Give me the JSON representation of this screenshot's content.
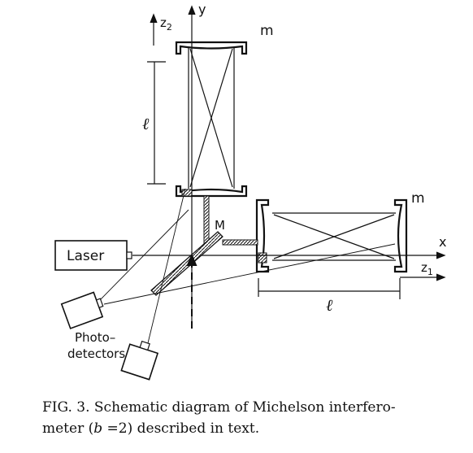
{
  "labels": {
    "y_axis": "y",
    "z2_axis": "z",
    "z2_sub": "2",
    "x_axis": "x",
    "z1_axis": "z",
    "z1_sub": "1",
    "mirror_top": "m",
    "mirror_right": "m",
    "beamsplitter": "M",
    "arm_length_vertical": "ℓ",
    "arm_length_horizontal": "ℓ",
    "laser": "Laser",
    "photodetectors_line1": "Photo–",
    "photodetectors_line2": "detectors"
  },
  "caption": {
    "line1": "FIG. 3.  Schematic diagram of Michelson interfero-",
    "line2_pre": "meter (",
    "line2_var": "b",
    "line2_post": " =2) described in text."
  }
}
